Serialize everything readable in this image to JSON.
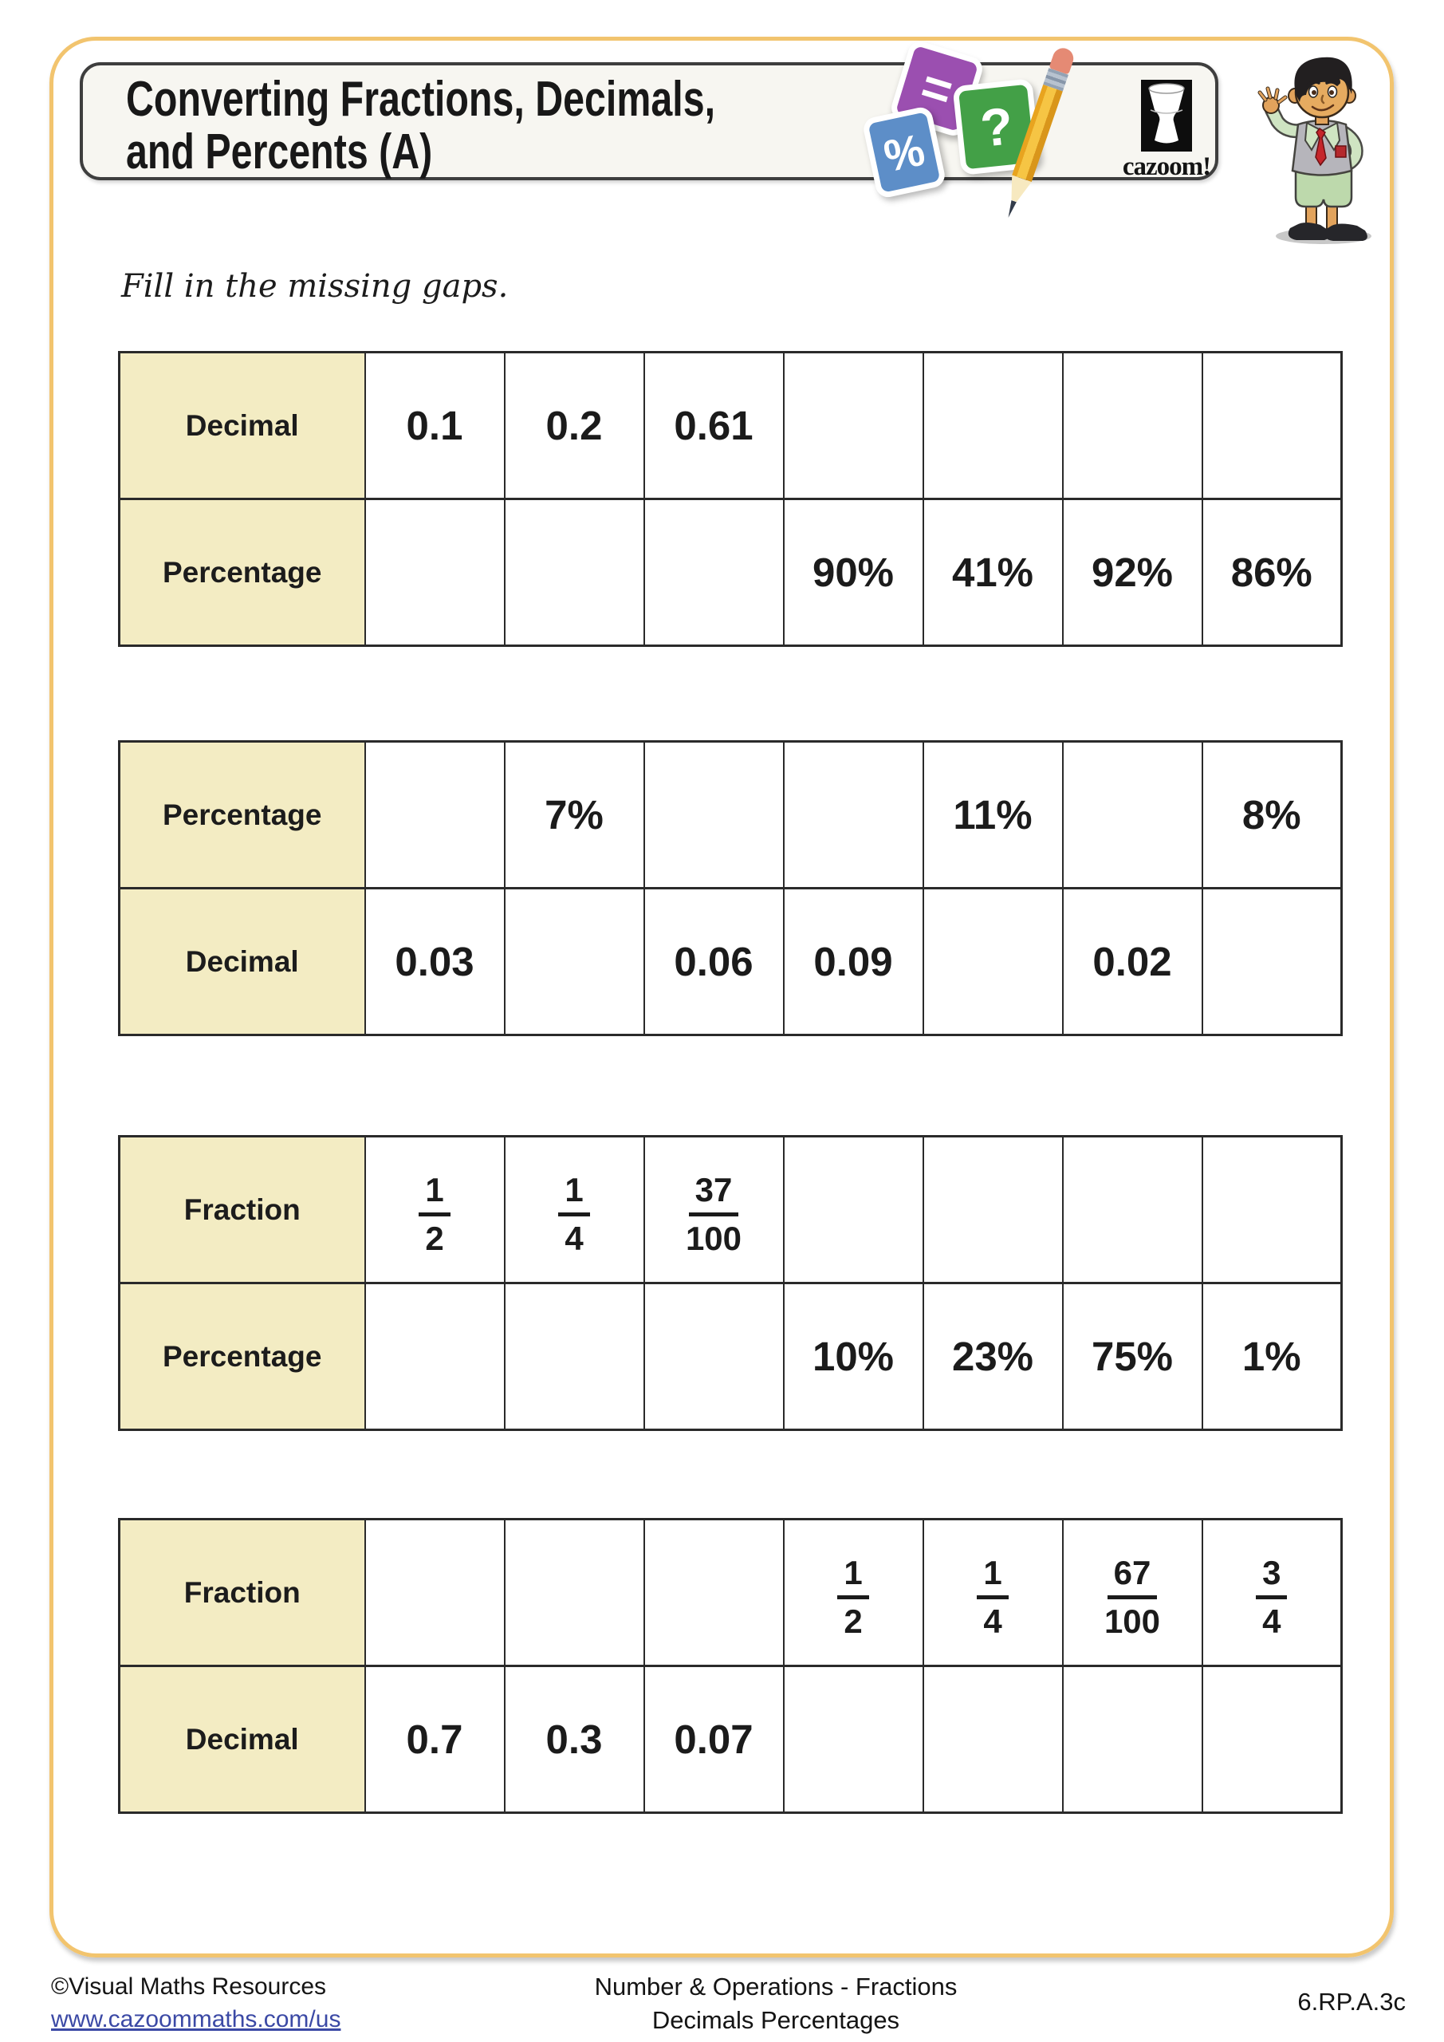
{
  "header": {
    "title_line1": "Converting Fractions, Decimals,",
    "title_line2": "and Percents (A)",
    "logo_text": "cazoom!",
    "card_equals": "=",
    "card_percent": "%",
    "card_question": "?"
  },
  "instruction": "Fill in the missing gaps.",
  "tables": [
    {
      "rows": [
        {
          "label": "Decimal",
          "cells": [
            "0.1",
            "0.2",
            "0.61",
            "",
            "",
            "",
            ""
          ]
        },
        {
          "label": "Percentage",
          "cells": [
            "",
            "",
            "",
            "90%",
            "41%",
            "92%",
            "86%"
          ]
        }
      ]
    },
    {
      "rows": [
        {
          "label": "Percentage",
          "cells": [
            "",
            "7%",
            "",
            "",
            "11%",
            "",
            "8%"
          ]
        },
        {
          "label": "Decimal",
          "cells": [
            "0.03",
            "",
            "0.06",
            "0.09",
            "",
            "0.02",
            ""
          ]
        }
      ]
    },
    {
      "rows": [
        {
          "label": "Fraction",
          "cells": [
            "1/2",
            "1/4",
            "37/100",
            "",
            "",
            "",
            ""
          ]
        },
        {
          "label": "Percentage",
          "cells": [
            "",
            "",
            "",
            "10%",
            "23%",
            "75%",
            "1%"
          ]
        }
      ]
    },
    {
      "rows": [
        {
          "label": "Fraction",
          "cells": [
            "",
            "",
            "",
            "1/2",
            "1/4",
            "67/100",
            "3/4"
          ]
        },
        {
          "label": "Decimal",
          "cells": [
            "0.7",
            "0.3",
            "0.07",
            "",
            "",
            "",
            ""
          ]
        }
      ]
    }
  ],
  "footer": {
    "copyright": "©Visual Maths Resources",
    "link": "www.cazoommaths.com/us",
    "center_line1": "Number & Operations - Fractions",
    "center_line2": "Decimals Percentages",
    "code": "6.RP.A.3c"
  },
  "colors": {
    "frame_accent": "#f2c46e",
    "label_cell_bg": "#f3ecc3",
    "table_border": "#2a2a2a",
    "card_purple": "#9b4fb0",
    "card_blue": "#5d8ec8",
    "card_green": "#43a047",
    "pencil_yellow": "#f6c544",
    "link_blue": "#3b49a5"
  }
}
